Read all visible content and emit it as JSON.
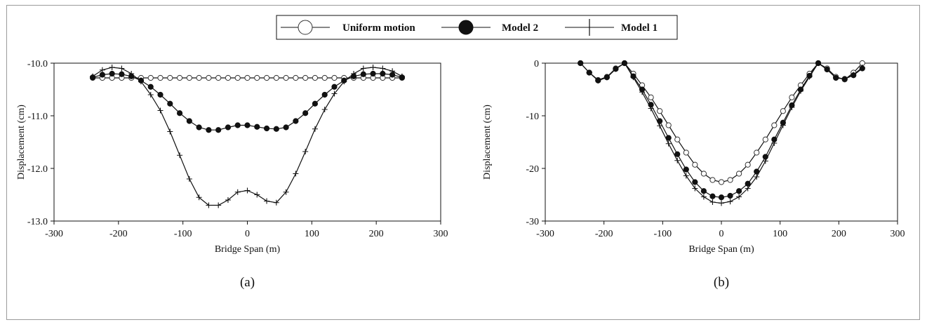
{
  "legend": {
    "items": [
      {
        "label": "Uniform motion",
        "marker": "open-circle"
      },
      {
        "label": "Model 2",
        "marker": "filled-circle"
      },
      {
        "label": "Model 1",
        "marker": "plus"
      }
    ]
  },
  "chart_data": [
    {
      "type": "line",
      "panel_label": "(a)",
      "xlabel": "Bridge Span (m)",
      "ylabel": "Displacement (cm)",
      "xlim": [
        -300,
        300
      ],
      "ylim": [
        -13.0,
        -10.0
      ],
      "xticks": [
        -300,
        -200,
        -100,
        0,
        100,
        200,
        300
      ],
      "yticks": [
        -10.0,
        -11.0,
        -12.0,
        -13.0
      ],
      "ytick_labels": [
        "-10.0",
        "-11.0",
        "-12.0",
        "-13.0"
      ],
      "grid": false,
      "series": [
        {
          "name": "Uniform motion",
          "marker": "open-circle",
          "x": [
            -240,
            -225,
            -210,
            -195,
            -180,
            -165,
            -150,
            -135,
            -120,
            -105,
            -90,
            -75,
            -60,
            -45,
            -30,
            -15,
            0,
            15,
            30,
            45,
            60,
            75,
            90,
            105,
            120,
            135,
            150,
            165,
            180,
            195,
            210,
            225,
            240
          ],
          "y": [
            -10.28,
            -10.28,
            -10.28,
            -10.28,
            -10.28,
            -10.28,
            -10.28,
            -10.28,
            -10.28,
            -10.28,
            -10.28,
            -10.28,
            -10.28,
            -10.28,
            -10.28,
            -10.28,
            -10.28,
            -10.28,
            -10.28,
            -10.28,
            -10.28,
            -10.28,
            -10.28,
            -10.28,
            -10.28,
            -10.28,
            -10.28,
            -10.28,
            -10.28,
            -10.28,
            -10.28,
            -10.28,
            -10.28
          ]
        },
        {
          "name": "Model 2",
          "marker": "filled-circle",
          "x": [
            -240,
            -225,
            -210,
            -195,
            -180,
            -165,
            -150,
            -135,
            -120,
            -105,
            -90,
            -75,
            -60,
            -45,
            -30,
            -15,
            0,
            15,
            30,
            45,
            60,
            75,
            90,
            105,
            120,
            135,
            150,
            165,
            180,
            195,
            210,
            225,
            240
          ],
          "y": [
            -10.27,
            -10.22,
            -10.2,
            -10.21,
            -10.25,
            -10.33,
            -10.45,
            -10.6,
            -10.77,
            -10.95,
            -11.1,
            -11.22,
            -11.27,
            -11.27,
            -11.22,
            -11.18,
            -11.18,
            -11.21,
            -11.24,
            -11.25,
            -11.22,
            -11.1,
            -10.95,
            -10.77,
            -10.6,
            -10.45,
            -10.33,
            -10.25,
            -10.21,
            -10.2,
            -10.2,
            -10.22,
            -10.27
          ]
        },
        {
          "name": "Model 1",
          "marker": "plus",
          "x": [
            -240,
            -225,
            -210,
            -195,
            -180,
            -165,
            -150,
            -135,
            -120,
            -105,
            -90,
            -75,
            -60,
            -45,
            -30,
            -15,
            0,
            15,
            30,
            45,
            60,
            75,
            90,
            105,
            120,
            135,
            150,
            165,
            180,
            195,
            210,
            225,
            240
          ],
          "y": [
            -10.25,
            -10.13,
            -10.08,
            -10.1,
            -10.2,
            -10.35,
            -10.6,
            -10.9,
            -11.3,
            -11.75,
            -12.2,
            -12.55,
            -12.7,
            -12.7,
            -12.6,
            -12.45,
            -12.42,
            -12.5,
            -12.62,
            -12.65,
            -12.45,
            -12.1,
            -11.68,
            -11.25,
            -10.88,
            -10.58,
            -10.35,
            -10.2,
            -10.1,
            -10.08,
            -10.1,
            -10.15,
            -10.25
          ]
        }
      ]
    },
    {
      "type": "line",
      "panel_label": "(b)",
      "xlabel": "Bridge Span (m)",
      "ylabel": "Displacement (cm)",
      "xlim": [
        -300,
        300
      ],
      "ylim": [
        -30,
        0
      ],
      "xticks": [
        -300,
        -200,
        -100,
        0,
        100,
        200,
        300
      ],
      "yticks": [
        0,
        -10,
        -20,
        -30
      ],
      "ytick_labels": [
        "0",
        "-10",
        "-20",
        "-30"
      ],
      "grid": false,
      "series": [
        {
          "name": "Uniform motion",
          "marker": "open-circle",
          "x": [
            -240,
            -225,
            -210,
            -195,
            -180,
            -165,
            -150,
            -135,
            -120,
            -105,
            -90,
            -75,
            -60,
            -45,
            -30,
            -15,
            0,
            15,
            30,
            45,
            60,
            75,
            90,
            105,
            120,
            135,
            150,
            165,
            180,
            195,
            210,
            225,
            240
          ],
          "y": [
            0,
            -1.8,
            -3.2,
            -2.6,
            -1,
            0,
            -2,
            -4.2,
            -6.5,
            -9.1,
            -11.8,
            -14.5,
            -17,
            -19.3,
            -21,
            -22.2,
            -22.6,
            -22.2,
            -21,
            -19.3,
            -17,
            -14.5,
            -11.8,
            -9.1,
            -6.5,
            -4.2,
            -2,
            0,
            -1,
            -2.6,
            -3.1,
            -1.8,
            0
          ]
        },
        {
          "name": "Model 2",
          "marker": "filled-circle",
          "x": [
            -240,
            -225,
            -210,
            -195,
            -180,
            -165,
            -150,
            -135,
            -120,
            -105,
            -90,
            -75,
            -60,
            -45,
            -30,
            -15,
            0,
            15,
            30,
            45,
            60,
            75,
            90,
            105,
            120,
            135,
            150,
            165,
            180,
            195,
            210,
            225,
            240
          ],
          "y": [
            0,
            -1.8,
            -3.3,
            -2.7,
            -1.1,
            0,
            -2.5,
            -5,
            -7.9,
            -11,
            -14.2,
            -17.3,
            -20.2,
            -22.6,
            -24.3,
            -25.3,
            -25.5,
            -25.2,
            -24.3,
            -22.9,
            -20.6,
            -17.8,
            -14.5,
            -11.3,
            -8,
            -5,
            -2.4,
            0,
            -1.2,
            -2.8,
            -3,
            -2.3,
            -1
          ]
        },
        {
          "name": "Model 1",
          "marker": "plus",
          "x": [
            -240,
            -225,
            -210,
            -195,
            -180,
            -165,
            -150,
            -135,
            -120,
            -105,
            -90,
            -75,
            -60,
            -45,
            -30,
            -15,
            0,
            15,
            30,
            45,
            60,
            75,
            90,
            105,
            120,
            135,
            150,
            165,
            180,
            195,
            210,
            225,
            240
          ],
          "y": [
            0,
            -1.8,
            -3.3,
            -2.7,
            -1.1,
            0,
            -2.7,
            -5.5,
            -8.6,
            -11.9,
            -15.3,
            -18.5,
            -21.4,
            -23.8,
            -25.4,
            -26.4,
            -26.6,
            -26.3,
            -25.4,
            -23.8,
            -21.6,
            -18.6,
            -15.2,
            -11.8,
            -8.4,
            -5.3,
            -2.6,
            0,
            -1.2,
            -2.8,
            -3,
            -2.2,
            -0.8
          ]
        }
      ]
    }
  ]
}
